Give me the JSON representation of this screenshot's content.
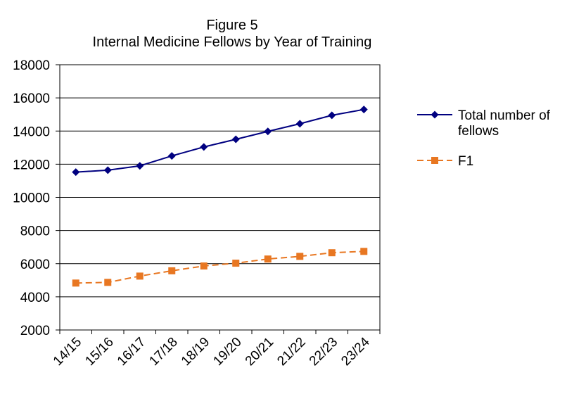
{
  "chart_data": {
    "type": "line",
    "title": "Figure 5",
    "subtitle": "Internal Medicine Fellows by Year of Training",
    "categories": [
      "14/15",
      "15/16",
      "16/17",
      "17/18",
      "18/19",
      "19/20",
      "20/21",
      "21/22",
      "22/23",
      "23/24"
    ],
    "ylim": [
      2000,
      18000
    ],
    "yticks": [
      "2000",
      "4000",
      "6000",
      "8000",
      "10000",
      "12000",
      "14000",
      "16000",
      "18000"
    ],
    "grid": true,
    "legend_position": "right",
    "series": [
      {
        "name": "Total number of fellows",
        "legend_lines": [
          "Total number of",
          "fellows"
        ],
        "color": "#000080",
        "line_style": "solid",
        "marker": "diamond",
        "values": [
          11520,
          11640,
          11900,
          12500,
          13040,
          13500,
          13980,
          14440,
          14950,
          15300
        ]
      },
      {
        "name": "F1",
        "legend_lines": [
          "F1"
        ],
        "color": "#E87722",
        "line_style": "dashed",
        "marker": "square",
        "values": [
          4830,
          4870,
          5250,
          5570,
          5860,
          6030,
          6280,
          6440,
          6660,
          6740
        ]
      }
    ]
  }
}
